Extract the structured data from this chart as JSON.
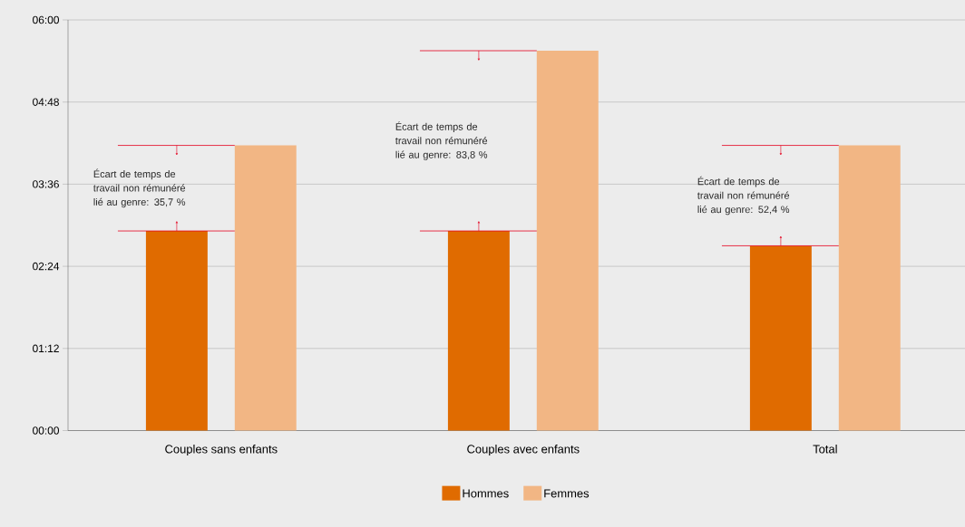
{
  "chart_data": {
    "type": "bar",
    "categories": [
      "Couples sans enfants",
      "Couples avec enfants",
      "Total"
    ],
    "series": [
      {
        "name": "Hommes",
        "color": "#e06b00",
        "values": [
          175,
          175,
          162
        ]
      },
      {
        "name": "Femmes",
        "color": "#f2b684",
        "values": [
          250,
          333,
          250
        ]
      }
    ],
    "ylim": [
      0,
      360
    ],
    "yticks": [
      {
        "value": 0,
        "label": "00:00"
      },
      {
        "value": 72,
        "label": "01:12"
      },
      {
        "value": 144,
        "label": "02:24"
      },
      {
        "value": 216,
        "label": "03:36"
      },
      {
        "value": 288,
        "label": "04:48"
      },
      {
        "value": 360,
        "label": "06:00"
      }
    ],
    "grid": "y",
    "legend": "bottom",
    "annotations": [
      "Écart de temps de travail non rémunéré lié au genre: 35,7 %",
      "Écart de temps de travail non rémunéré lié au genre: 83,8 %",
      "Écart de temps de travail non rémunéré lié au genre: 52,4 %"
    ]
  }
}
